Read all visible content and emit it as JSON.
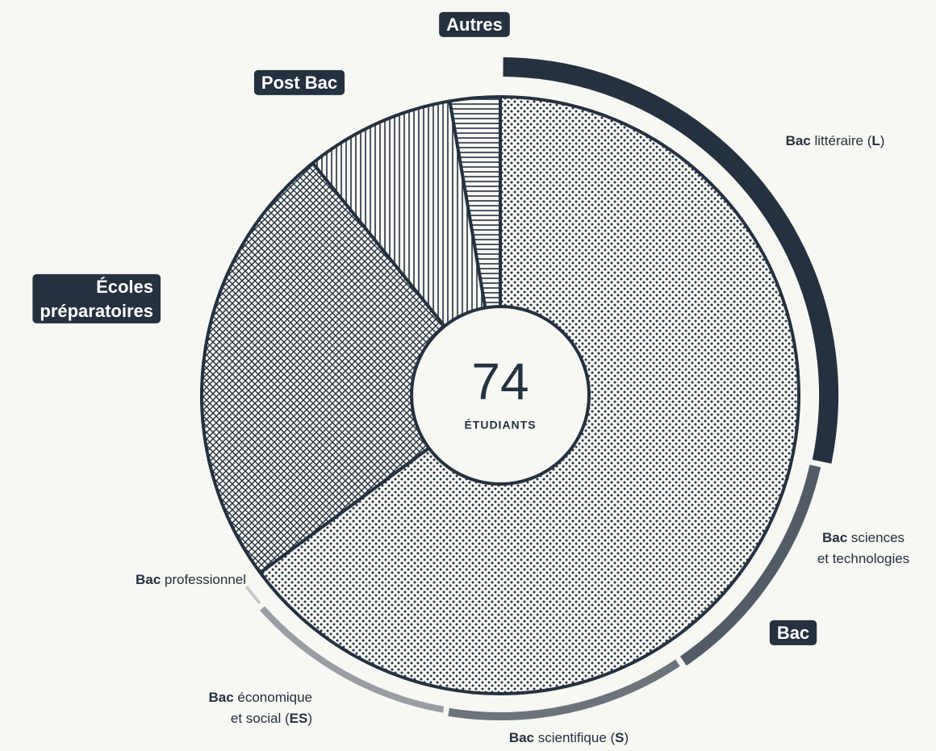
{
  "chart_data": {
    "type": "donut",
    "total": 74,
    "total_label": "étudiants",
    "categories": [
      "Bac",
      "Écoles\npréparatoires",
      "Post Bac",
      "Autres"
    ],
    "values": [
      48,
      18,
      6,
      2
    ],
    "patterns": [
      "dots",
      "crosshatch",
      "vertical",
      "horizontal"
    ],
    "color": "#25313f",
    "breakdown": {
      "parent": 0,
      "categories": [
        "Bac littéraire (L)",
        "Bac sciences\net technologies",
        "Bac scientifique (S)",
        "Bac économique\net social (ES)",
        "Bac professionnel"
      ],
      "values": [
        21,
        9,
        9,
        8,
        1
      ],
      "colors": [
        "#25313f",
        "#535c66",
        "#6c737a",
        "#9a9ea2",
        "#c5c8ca"
      ]
    }
  }
}
